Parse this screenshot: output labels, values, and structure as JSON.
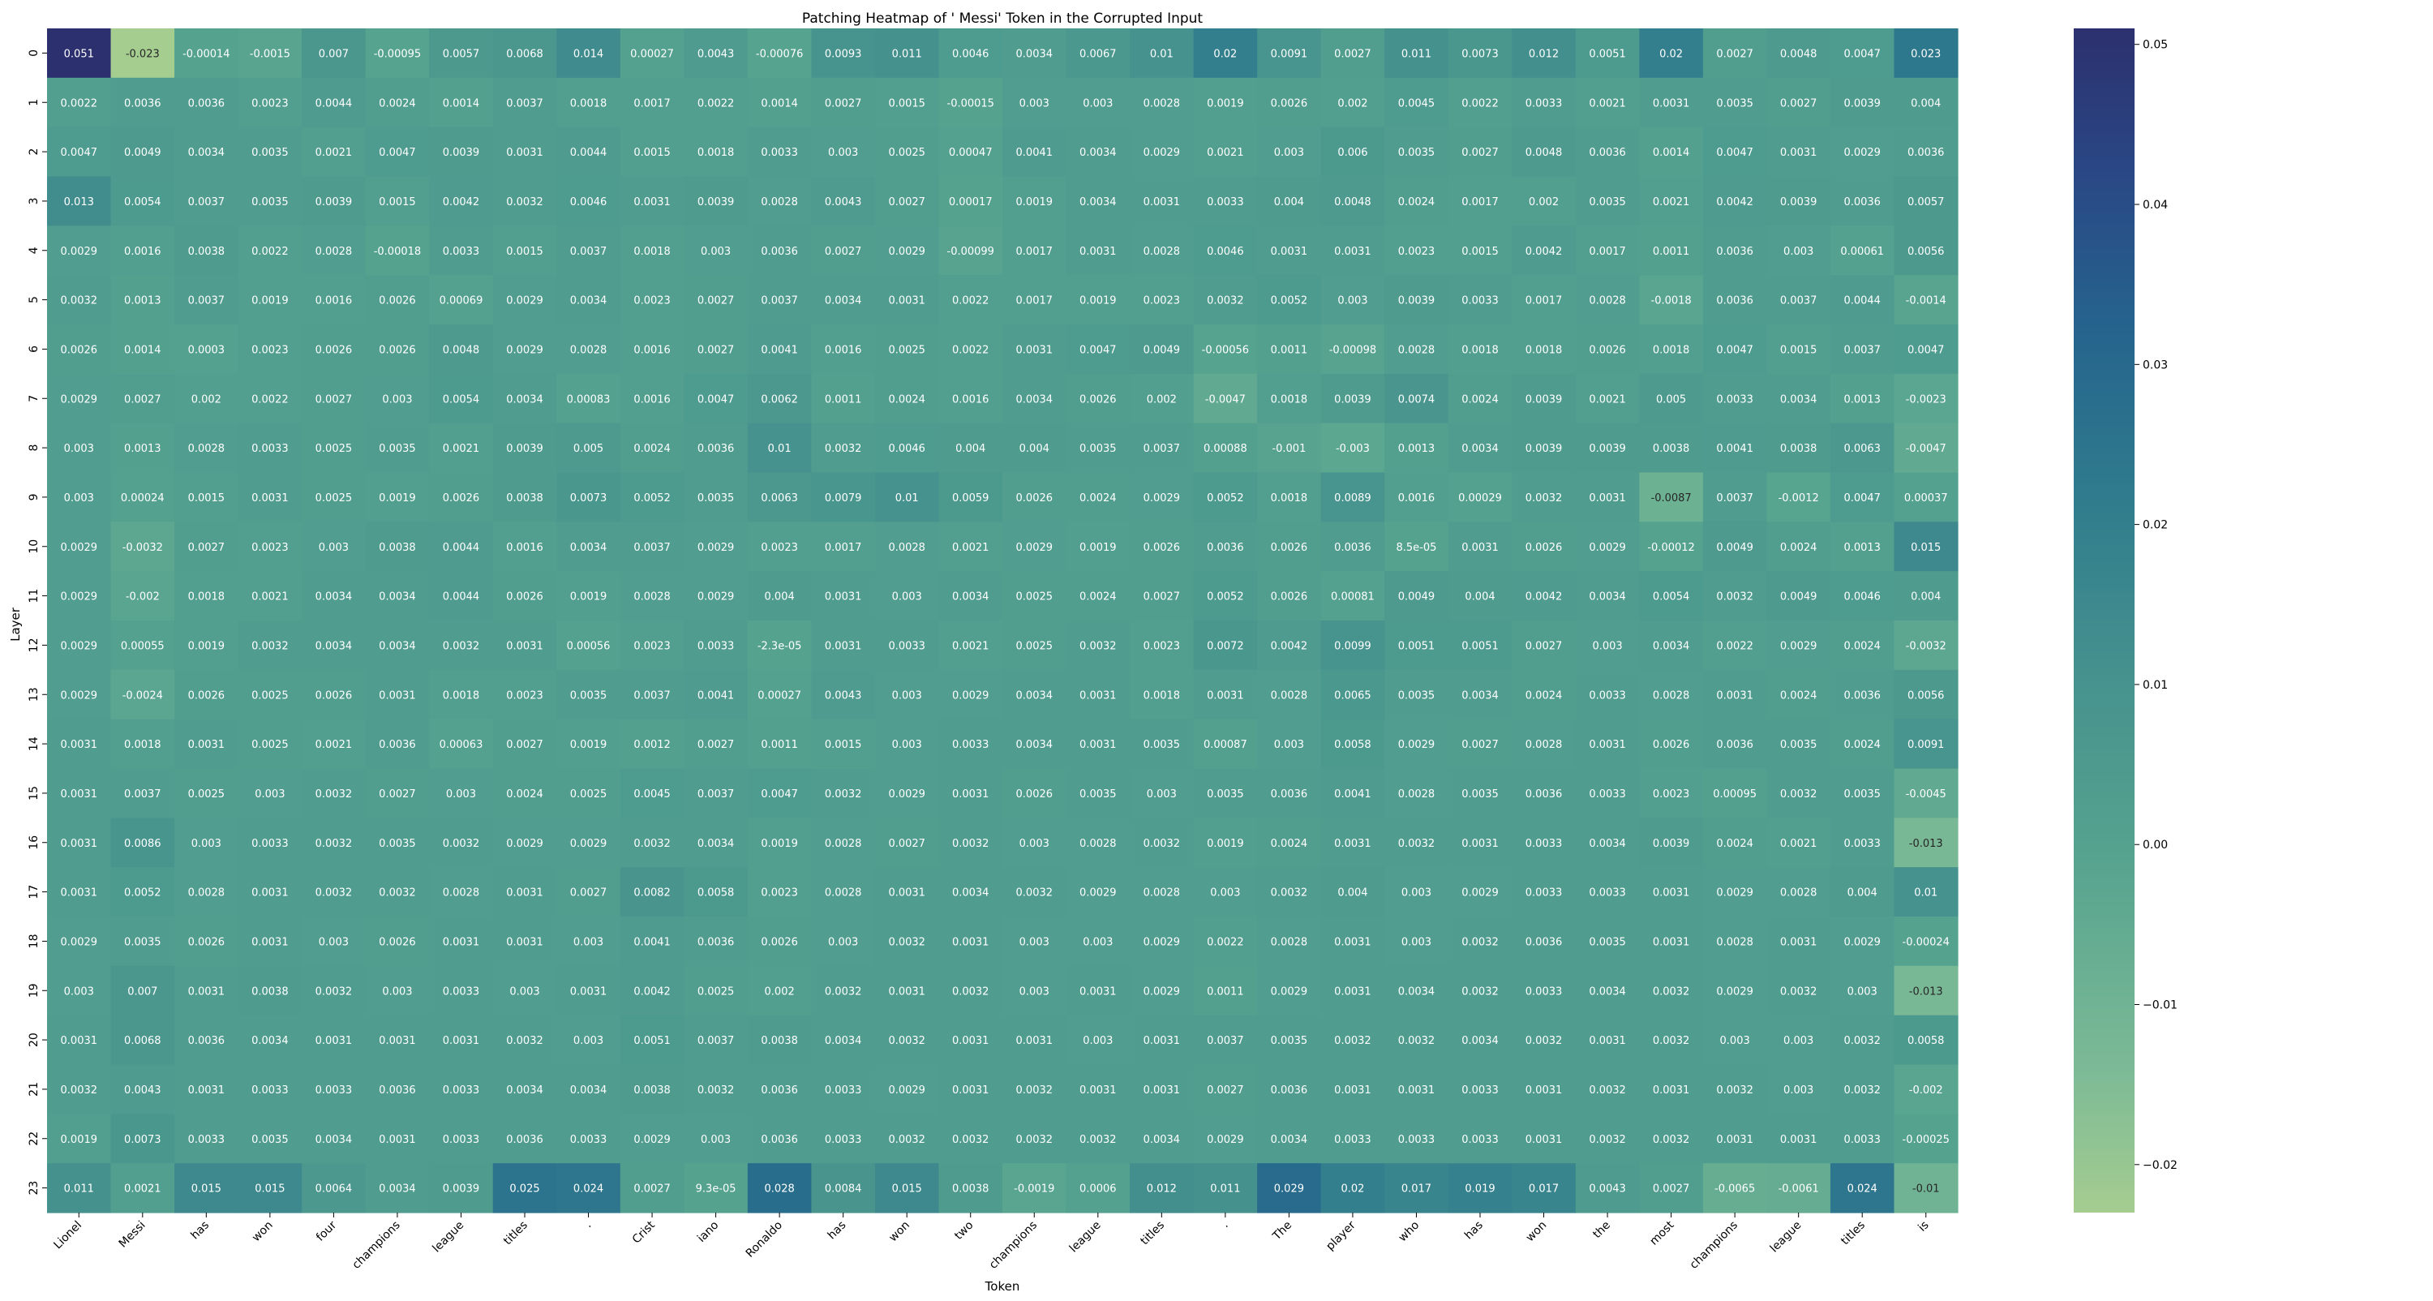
{
  "chart_data": {
    "type": "heatmap",
    "title": "Patching Heatmap of ' Messi' Token in the Corrupted Input",
    "xlabel": "Token",
    "ylabel": "Layer",
    "x_tick_labels": [
      "Lionel",
      "Messi",
      "has",
      "won",
      "four",
      "champions",
      "league",
      "titles",
      ".",
      "Crist",
      "iano",
      "Ronaldo",
      "has",
      "won",
      "two",
      "champions",
      "league",
      "titles",
      ".",
      "The",
      "player",
      "who",
      "has",
      "won",
      "the",
      "most",
      "champions",
      "league",
      "titles",
      "is"
    ],
    "y_tick_labels": [
      "0",
      "1",
      "2",
      "3",
      "4",
      "5",
      "6",
      "7",
      "8",
      "9",
      "10",
      "11",
      "12",
      "13",
      "14",
      "15",
      "16",
      "17",
      "18",
      "19",
      "20",
      "21",
      "22",
      "23"
    ],
    "colormap": "crest",
    "vmin": -0.023,
    "vmax": 0.051,
    "colorbar_ticks": [
      "0.05",
      "0.04",
      "0.03",
      "0.02",
      "0.01",
      "0.00",
      "−0.01",
      "−0.02"
    ],
    "values": [
      [
        "0.051",
        "-0.023",
        "-0.00014",
        "-0.0015",
        "0.007",
        "-0.00095",
        "0.0057",
        "0.0068",
        "0.014",
        "0.00027",
        "0.0043",
        "-0.00076",
        "0.0093",
        "0.011",
        "0.0046",
        "0.0034",
        "0.0067",
        "0.01",
        "0.02",
        "0.0091",
        "0.0027",
        "0.011",
        "0.0073",
        "0.012",
        "0.0051",
        "0.02",
        "0.0027",
        "0.0048",
        "0.0047",
        "0.023"
      ],
      [
        "0.0022",
        "0.0036",
        "0.0036",
        "0.0023",
        "0.0044",
        "0.0024",
        "0.0014",
        "0.0037",
        "0.0018",
        "0.0017",
        "0.0022",
        "0.0014",
        "0.0027",
        "0.0015",
        "-0.00015",
        "0.003",
        "0.003",
        "0.0028",
        "0.0019",
        "0.0026",
        "0.002",
        "0.0045",
        "0.0022",
        "0.0033",
        "0.0021",
        "0.0031",
        "0.0035",
        "0.0027",
        "0.0039",
        "0.004"
      ],
      [
        "0.0047",
        "0.0049",
        "0.0034",
        "0.0035",
        "0.0021",
        "0.0047",
        "0.0039",
        "0.0031",
        "0.0044",
        "0.0015",
        "0.0018",
        "0.0033",
        "0.003",
        "0.0025",
        "0.00047",
        "0.0041",
        "0.0034",
        "0.0029",
        "0.0021",
        "0.003",
        "0.006",
        "0.0035",
        "0.0027",
        "0.0048",
        "0.0036",
        "0.0014",
        "0.0047",
        "0.0031",
        "0.0029",
        "0.0036"
      ],
      [
        "0.013",
        "0.0054",
        "0.0037",
        "0.0035",
        "0.0039",
        "0.0015",
        "0.0042",
        "0.0032",
        "0.0046",
        "0.0031",
        "0.0039",
        "0.0028",
        "0.0043",
        "0.0027",
        "0.00017",
        "0.0019",
        "0.0034",
        "0.0031",
        "0.0033",
        "0.004",
        "0.0048",
        "0.0024",
        "0.0017",
        "0.002",
        "0.0035",
        "0.0021",
        "0.0042",
        "0.0039",
        "0.0036",
        "0.0057"
      ],
      [
        "0.0029",
        "0.0016",
        "0.0038",
        "0.0022",
        "0.0028",
        "-0.00018",
        "0.0033",
        "0.0015",
        "0.0037",
        "0.0018",
        "0.003",
        "0.0036",
        "0.0027",
        "0.0029",
        "-0.00099",
        "0.0017",
        "0.0031",
        "0.0028",
        "0.0046",
        "0.0031",
        "0.0031",
        "0.0023",
        "0.0015",
        "0.0042",
        "0.0017",
        "0.0011",
        "0.0036",
        "0.003",
        "0.00061",
        "0.0056"
      ],
      [
        "0.0032",
        "0.0013",
        "0.0037",
        "0.0019",
        "0.0016",
        "0.0026",
        "0.00069",
        "0.0029",
        "0.0034",
        "0.0023",
        "0.0027",
        "0.0037",
        "0.0034",
        "0.0031",
        "0.0022",
        "0.0017",
        "0.0019",
        "0.0023",
        "0.0032",
        "0.0052",
        "0.003",
        "0.0039",
        "0.0033",
        "0.0017",
        "0.0028",
        "-0.0018",
        "0.0036",
        "0.0037",
        "0.0044",
        "-0.0014"
      ],
      [
        "0.0026",
        "0.0014",
        "0.0003",
        "0.0023",
        "0.0026",
        "0.0026",
        "0.0048",
        "0.0029",
        "0.0028",
        "0.0016",
        "0.0027",
        "0.0041",
        "0.0016",
        "0.0025",
        "0.0022",
        "0.0031",
        "0.0047",
        "0.0049",
        "-0.00056",
        "0.0011",
        "-0.00098",
        "0.0028",
        "0.0018",
        "0.0018",
        "0.0026",
        "0.0018",
        "0.0047",
        "0.0015",
        "0.0037",
        "0.0047"
      ],
      [
        "0.0029",
        "0.0027",
        "0.002",
        "0.0022",
        "0.0027",
        "0.003",
        "0.0054",
        "0.0034",
        "0.00083",
        "0.0016",
        "0.0047",
        "0.0062",
        "0.0011",
        "0.0024",
        "0.0016",
        "0.0034",
        "0.0026",
        "0.002",
        "-0.0047",
        "0.0018",
        "0.0039",
        "0.0074",
        "0.0024",
        "0.0039",
        "0.0021",
        "0.005",
        "0.0033",
        "0.0034",
        "0.0013",
        "-0.0023"
      ],
      [
        "0.003",
        "0.0013",
        "0.0028",
        "0.0033",
        "0.0025",
        "0.0035",
        "0.0021",
        "0.0039",
        "0.005",
        "0.0024",
        "0.0036",
        "0.01",
        "0.0032",
        "0.0046",
        "0.004",
        "0.004",
        "0.0035",
        "0.0037",
        "0.00088",
        "-0.001",
        "-0.003",
        "0.0013",
        "0.0034",
        "0.0039",
        "0.0039",
        "0.0038",
        "0.0041",
        "0.0038",
        "0.0063",
        "-0.0047"
      ],
      [
        "0.003",
        "0.00024",
        "0.0015",
        "0.0031",
        "0.0025",
        "0.0019",
        "0.0026",
        "0.0038",
        "0.0073",
        "0.0052",
        "0.0035",
        "0.0063",
        "0.0079",
        "0.01",
        "0.0059",
        "0.0026",
        "0.0024",
        "0.0029",
        "0.0052",
        "0.0018",
        "0.0089",
        "0.0016",
        "0.00029",
        "0.0032",
        "0.0031",
        "-0.0087",
        "0.0037",
        "-0.0012",
        "0.0047",
        "0.00037"
      ],
      [
        "0.0029",
        "-0.0032",
        "0.0027",
        "0.0023",
        "0.003",
        "0.0038",
        "0.0044",
        "0.0016",
        "0.0034",
        "0.0037",
        "0.0029",
        "0.0023",
        "0.0017",
        "0.0028",
        "0.0021",
        "0.0029",
        "0.0019",
        "0.0026",
        "0.0036",
        "0.0026",
        "0.0036",
        "8.5e-05",
        "0.0031",
        "0.0026",
        "0.0029",
        "-0.00012",
        "0.0049",
        "0.0024",
        "0.0013",
        "0.015"
      ],
      [
        "0.0029",
        "-0.002",
        "0.0018",
        "0.0021",
        "0.0034",
        "0.0034",
        "0.0044",
        "0.0026",
        "0.0019",
        "0.0028",
        "0.0029",
        "0.004",
        "0.0031",
        "0.003",
        "0.0034",
        "0.0025",
        "0.0024",
        "0.0027",
        "0.0052",
        "0.0026",
        "0.00081",
        "0.0049",
        "0.004",
        "0.0042",
        "0.0034",
        "0.0054",
        "0.0032",
        "0.0049",
        "0.0046",
        "0.004"
      ],
      [
        "0.0029",
        "0.00055",
        "0.0019",
        "0.0032",
        "0.0034",
        "0.0034",
        "0.0032",
        "0.0031",
        "0.00056",
        "0.0023",
        "0.0033",
        "-2.3e-05",
        "0.0031",
        "0.0033",
        "0.0021",
        "0.0025",
        "0.0032",
        "0.0023",
        "0.0072",
        "0.0042",
        "0.0099",
        "0.0051",
        "0.0051",
        "0.0027",
        "0.003",
        "0.0034",
        "0.0022",
        "0.0029",
        "0.0024",
        "-0.0032"
      ],
      [
        "0.0029",
        "-0.0024",
        "0.0026",
        "0.0025",
        "0.0026",
        "0.0031",
        "0.0018",
        "0.0023",
        "0.0035",
        "0.0037",
        "0.0041",
        "0.00027",
        "0.0043",
        "0.003",
        "0.0029",
        "0.0034",
        "0.0031",
        "0.0018",
        "0.0031",
        "0.0028",
        "0.0065",
        "0.0035",
        "0.0034",
        "0.0024",
        "0.0033",
        "0.0028",
        "0.0031",
        "0.0024",
        "0.0036",
        "0.0056"
      ],
      [
        "0.0031",
        "0.0018",
        "0.0031",
        "0.0025",
        "0.0021",
        "0.0036",
        "0.00063",
        "0.0027",
        "0.0019",
        "0.0012",
        "0.0027",
        "0.0011",
        "0.0015",
        "0.003",
        "0.0033",
        "0.0034",
        "0.0031",
        "0.0035",
        "0.00087",
        "0.003",
        "0.0058",
        "0.0029",
        "0.0027",
        "0.0028",
        "0.0031",
        "0.0026",
        "0.0036",
        "0.0035",
        "0.0024",
        "0.0091"
      ],
      [
        "0.0031",
        "0.0037",
        "0.0025",
        "0.003",
        "0.0032",
        "0.0027",
        "0.003",
        "0.0024",
        "0.0025",
        "0.0045",
        "0.0037",
        "0.0047",
        "0.0032",
        "0.0029",
        "0.0031",
        "0.0026",
        "0.0035",
        "0.003",
        "0.0035",
        "0.0036",
        "0.0041",
        "0.0028",
        "0.0035",
        "0.0036",
        "0.0033",
        "0.0023",
        "0.00095",
        "0.0032",
        "0.0035",
        "-0.0045"
      ],
      [
        "0.0031",
        "0.0086",
        "0.003",
        "0.0033",
        "0.0032",
        "0.0035",
        "0.0032",
        "0.0029",
        "0.0029",
        "0.0032",
        "0.0034",
        "0.0019",
        "0.0028",
        "0.0027",
        "0.0032",
        "0.003",
        "0.0028",
        "0.0032",
        "0.0019",
        "0.0024",
        "0.0031",
        "0.0032",
        "0.0031",
        "0.0033",
        "0.0034",
        "0.0039",
        "0.0024",
        "0.0021",
        "0.0033",
        "-0.013"
      ],
      [
        "0.0031",
        "0.0052",
        "0.0028",
        "0.0031",
        "0.0032",
        "0.0032",
        "0.0028",
        "0.0031",
        "0.0027",
        "0.0082",
        "0.0058",
        "0.0023",
        "0.0028",
        "0.0031",
        "0.0034",
        "0.0032",
        "0.0029",
        "0.0028",
        "0.003",
        "0.0032",
        "0.004",
        "0.003",
        "0.0029",
        "0.0033",
        "0.0033",
        "0.0031",
        "0.0029",
        "0.0028",
        "0.004",
        "0.01"
      ],
      [
        "0.0029",
        "0.0035",
        "0.0026",
        "0.0031",
        "0.003",
        "0.0026",
        "0.0031",
        "0.0031",
        "0.003",
        "0.0041",
        "0.0036",
        "0.0026",
        "0.003",
        "0.0032",
        "0.0031",
        "0.003",
        "0.003",
        "0.0029",
        "0.0022",
        "0.0028",
        "0.0031",
        "0.003",
        "0.0032",
        "0.0036",
        "0.0035",
        "0.0031",
        "0.0028",
        "0.0031",
        "0.0029",
        "-0.00024"
      ],
      [
        "0.003",
        "0.007",
        "0.0031",
        "0.0038",
        "0.0032",
        "0.003",
        "0.0033",
        "0.003",
        "0.0031",
        "0.0042",
        "0.0025",
        "0.002",
        "0.0032",
        "0.0031",
        "0.0032",
        "0.003",
        "0.0031",
        "0.0029",
        "0.0011",
        "0.0029",
        "0.0031",
        "0.0034",
        "0.0032",
        "0.0033",
        "0.0034",
        "0.0032",
        "0.0029",
        "0.0032",
        "0.003",
        "-0.013"
      ],
      [
        "0.0031",
        "0.0068",
        "0.0036",
        "0.0034",
        "0.0031",
        "0.0031",
        "0.0031",
        "0.0032",
        "0.003",
        "0.0051",
        "0.0037",
        "0.0038",
        "0.0034",
        "0.0032",
        "0.0031",
        "0.0031",
        "0.003",
        "0.0031",
        "0.0037",
        "0.0035",
        "0.0032",
        "0.0032",
        "0.0034",
        "0.0032",
        "0.0031",
        "0.0032",
        "0.003",
        "0.003",
        "0.0032",
        "0.0058"
      ],
      [
        "0.0032",
        "0.0043",
        "0.0031",
        "0.0033",
        "0.0033",
        "0.0036",
        "0.0033",
        "0.0034",
        "0.0034",
        "0.0038",
        "0.0032",
        "0.0036",
        "0.0033",
        "0.0029",
        "0.0031",
        "0.0032",
        "0.0031",
        "0.0031",
        "0.0027",
        "0.0036",
        "0.0031",
        "0.0031",
        "0.0033",
        "0.0031",
        "0.0032",
        "0.0031",
        "0.0032",
        "0.003",
        "0.0032",
        "-0.002"
      ],
      [
        "0.0019",
        "0.0073",
        "0.0033",
        "0.0035",
        "0.0034",
        "0.0031",
        "0.0033",
        "0.0036",
        "0.0033",
        "0.0029",
        "0.003",
        "0.0036",
        "0.0033",
        "0.0032",
        "0.0032",
        "0.0032",
        "0.0032",
        "0.0034",
        "0.0029",
        "0.0034",
        "0.0033",
        "0.0033",
        "0.0033",
        "0.0031",
        "0.0032",
        "0.0032",
        "0.0031",
        "0.0031",
        "0.0033",
        "-0.00025"
      ],
      [
        "0.011",
        "0.0021",
        "0.015",
        "0.015",
        "0.0064",
        "0.0034",
        "0.0039",
        "0.025",
        "0.024",
        "0.0027",
        "9.3e-05",
        "0.028",
        "0.0084",
        "0.015",
        "0.0038",
        "-0.0019",
        "0.0006",
        "0.012",
        "0.011",
        "0.029",
        "0.02",
        "0.017",
        "0.019",
        "0.017",
        "0.0043",
        "0.0027",
        "-0.0065",
        "-0.0061",
        "0.024",
        "-0.01"
      ]
    ]
  }
}
